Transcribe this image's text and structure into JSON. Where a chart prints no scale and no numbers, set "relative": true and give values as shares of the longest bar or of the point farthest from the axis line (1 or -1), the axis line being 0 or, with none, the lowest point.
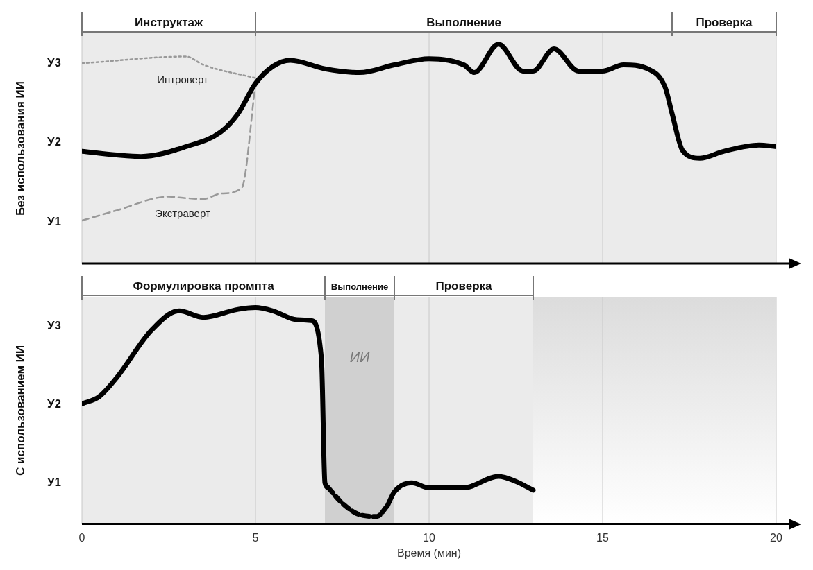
{
  "chart_data": [
    {
      "type": "line",
      "relative": true,
      "ylabel": "Без использования ИИ",
      "xlim": [
        0,
        20
      ],
      "xticks": [
        0,
        5,
        10,
        15,
        20
      ],
      "tick_labels": false,
      "grid": "x",
      "legend": false,
      "marker": "none",
      "annotations": [
        "У1",
        "У2",
        "У3"
      ],
      "bands": [
        {
          "axis": "x",
          "from": 0,
          "to": 5,
          "label": "Инструктаж",
          "color": "#ebebeb"
        },
        {
          "axis": "x",
          "from": 5,
          "to": 17,
          "label": "Выполнение",
          "color": "#ebebeb"
        },
        {
          "axis": "x",
          "from": 17,
          "to": 20,
          "label": "Проверка",
          "color": "#ebebeb"
        }
      ],
      "series": [
        {
          "color": "#000000",
          "line_style": "solid",
          "x": [
            0,
            1,
            1.7,
            3,
            4,
            4.5,
            5,
            5.5,
            6,
            7,
            8,
            9,
            10,
            11,
            11.3,
            12,
            12.7,
            13,
            13.6,
            14.3,
            15,
            15.6,
            16.3,
            16.8,
            17,
            17.3,
            17.8,
            18.5,
            19.5,
            20
          ],
          "values": [
            0.512,
            0.495,
            0.488,
            0.533,
            0.6,
            0.684,
            0.821,
            0.899,
            0.927,
            0.888,
            0.871,
            0.906,
            0.934,
            0.906,
            0.871,
            1,
            0.878,
            0.878,
            0.979,
            0.878,
            0.878,
            0.906,
            0.888,
            0.804,
            0.684,
            0.516,
            0.48,
            0.512,
            0.54,
            0.533
          ]
        },
        {
          "name": "Интроверт",
          "color": "#999999",
          "line_style": "dotted",
          "x": [
            0,
            3,
            3.5,
            5
          ],
          "values": [
            0.913,
            0.944,
            0.906,
            0.846
          ]
        },
        {
          "name": "Экстраверт",
          "color": "#999999",
          "line_style": "dashed",
          "x": [
            0,
            1,
            2.5,
            3,
            3.5,
            4,
            4.6,
            5
          ],
          "values": [
            0.196,
            0.242,
            0.305,
            0.298,
            0.294,
            0.319,
            0.344,
            0.821
          ]
        }
      ]
    },
    {
      "type": "line",
      "relative": true,
      "ylabel": "С использованием ИИ",
      "xlabel": "Время (мин)",
      "xlim": [
        0,
        20
      ],
      "xticks": [
        0,
        5,
        10,
        15,
        20
      ],
      "tick_labels": "x",
      "grid": "x",
      "legend": false,
      "marker": "none",
      "annotations": [
        "У1",
        "У2",
        "У3",
        "ИИ"
      ],
      "bands": [
        {
          "axis": "x",
          "from": 0,
          "to": 7,
          "label": "Формулировка промпта",
          "color": "#ebebeb"
        },
        {
          "axis": "x",
          "from": 7,
          "to": 9,
          "label": "Выполнение",
          "color": "#d0d0d0"
        },
        {
          "axis": "x",
          "from": 9,
          "to": 13,
          "label": "Проверка",
          "color": "#ebebeb"
        }
      ],
      "series": [
        {
          "color": "#000000",
          "line_style": "solid",
          "x": [
            0,
            0.5,
            1,
            2,
            2.8,
            3.5,
            4.5,
            5,
            5.5,
            6.2,
            6.6,
            6.9,
            7,
            7.1
          ],
          "values": [
            0.555,
            0.589,
            0.676,
            0.895,
            0.985,
            0.955,
            0.992,
            1,
            0.985,
            0.944,
            0.94,
            0.763,
            0.19,
            0.167
          ]
        },
        {
          "color": "#000000",
          "line_style": "dashed",
          "x": [
            7.1,
            7.5,
            8,
            8.5,
            8.8
          ],
          "values": [
            0.167,
            0.096,
            0.043,
            0.035,
            0.084
          ]
        },
        {
          "color": "#000000",
          "line_style": "solid",
          "x": [
            8.8,
            9,
            9.5,
            10,
            11,
            12,
            12.5,
            13
          ],
          "values": [
            0.084,
            0.148,
            0.19,
            0.167,
            0.167,
            0.22,
            0.197,
            0.156
          ]
        }
      ]
    }
  ]
}
